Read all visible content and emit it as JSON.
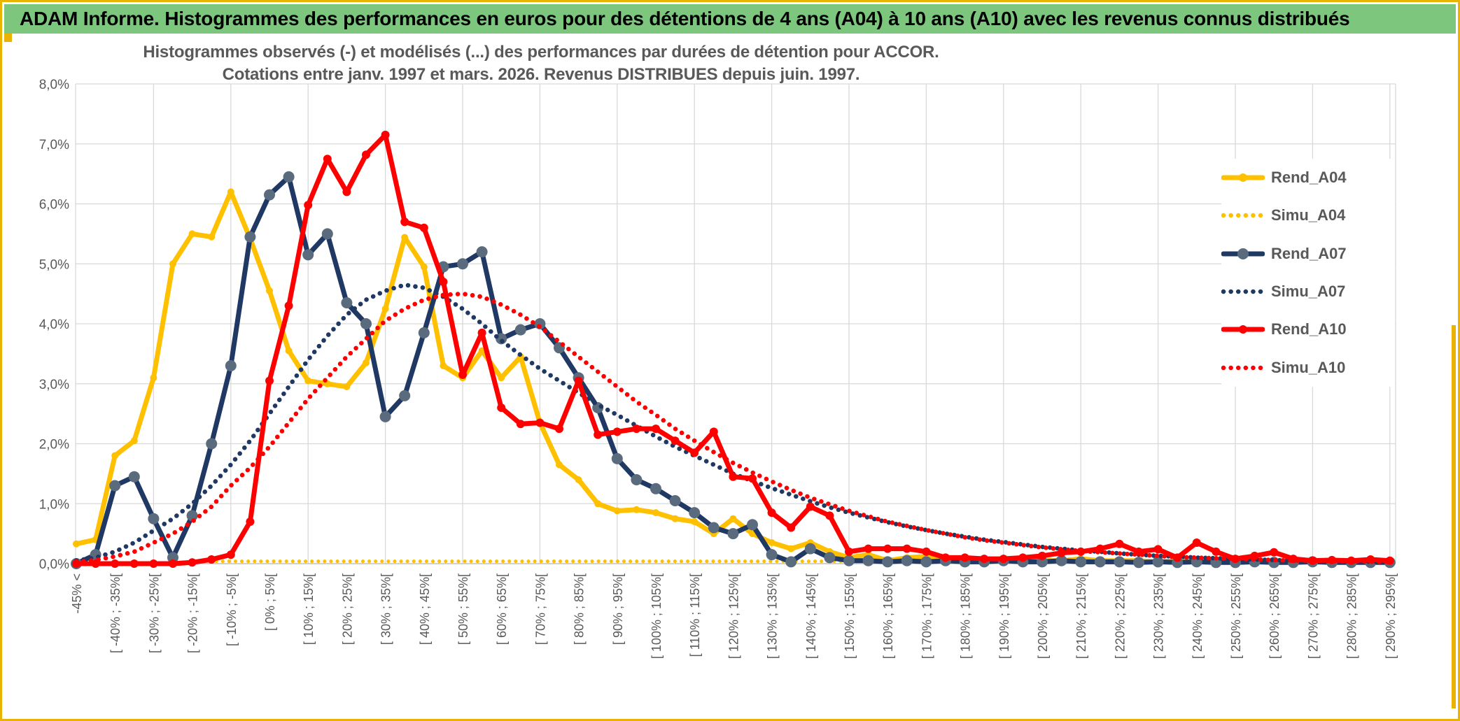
{
  "banner": {
    "title": "ADAM Informe. Histogrammes des performances en euros pour des détentions de 4 ans (A04) à 10 ans (A10) avec les revenus connus distribués"
  },
  "chart": {
    "title_line1": "Histogrammes observés (-) et modélisés (...) des performances par durées de détention pour ACCOR.",
    "title_line2": "Cotations entre janv. 1997 et mars. 2026. Revenus DISTRIBUES depuis juin. 1997."
  },
  "colors": {
    "banner_green": "#7CC77D",
    "border_gold": "#E9B300",
    "gold": "#FFC000",
    "navy": "#1F3864",
    "navy_marker_gray": "#5A6B7E",
    "red": "#FF0000",
    "axis_text_gray": "#595959",
    "gridline_gray": "#D9D9D9",
    "axis_line_gray": "#BFBFBF"
  },
  "legend": {
    "items": [
      {
        "label": "Rend_A04",
        "color": "#FFC000",
        "style": "solid",
        "marker": "#FFC000"
      },
      {
        "label": "Simu_A04",
        "color": "#FFC000",
        "style": "dotted",
        "marker": ""
      },
      {
        "label": "Rend_A07",
        "color": "#1F3864",
        "style": "solid",
        "marker": "#5A6B7E"
      },
      {
        "label": "Simu_A07",
        "color": "#1F3864",
        "style": "dotted",
        "marker": ""
      },
      {
        "label": "Rend_A10",
        "color": "#FF0000",
        "style": "solid",
        "marker": "#FF0000"
      },
      {
        "label": "Simu_A10",
        "color": "#FF0000",
        "style": "dotted",
        "marker": ""
      }
    ]
  },
  "chart_data": {
    "type": "line",
    "title": "Histogrammes observés (-) et modélisés (...) des performances par durées de détention pour ACCOR. Cotations entre janv. 1997 et mars. 2026. Revenus DISTRIBUES depuis juin. 1997.",
    "xlabel": "",
    "ylabel": "",
    "ylim": [
      0,
      8
    ],
    "grid": true,
    "legend_position": "right-overlay",
    "ytick_labels": [
      "0,0%",
      "1,0%",
      "2,0%",
      "3,0%",
      "4,0%",
      "5,0%",
      "6,0%",
      "7,0%",
      "8,0%"
    ],
    "x_label_interval": 2,
    "categories": [
      "-45% <",
      "",
      "[ -40% ; -35%[",
      "",
      "[ -30% ; -25%[",
      "",
      "[ -20% ; -15%[",
      "",
      "[ -10% ; -5%[",
      "",
      "[ 0% ; 5%[",
      "",
      "[ 10% ; 15%[",
      "",
      "[ 20% ; 25%[",
      "",
      "[ 30% ; 35%[",
      "",
      "[ 40% ; 45%[",
      "",
      "[ 50% ; 55%[",
      "",
      "[ 60% ; 65%[",
      "",
      "[ 70% ; 75%[",
      "",
      "[ 80% ; 85%[",
      "",
      "[ 90% ; 95%[",
      "",
      "[ 100% ; 105%[",
      "",
      "[ 110% ; 115%[",
      "",
      "[ 120% ; 125%[",
      "",
      "[ 130% ; 135%[",
      "",
      "[ 140% ; 145%[",
      "",
      "[ 150% ; 155%[",
      "",
      "[ 160% ; 165%[",
      "",
      "[ 170% ; 175%[",
      "",
      "[ 180% ; 185%[",
      "",
      "[ 190% ; 195%[",
      "",
      "[ 200% ; 205%[",
      "",
      "[ 210% ; 215%[",
      "",
      "[ 220% ; 225%[",
      "",
      "[ 230% ; 235%[",
      "",
      "[ 240% ; 245%[",
      "",
      "[ 250% ; 255%[",
      "",
      "[ 260% ; 265%[",
      "",
      "[ 270% ; 275%[",
      "",
      "[ 280% ; 285%[",
      "",
      "[ 290% ; 295%["
    ],
    "series": [
      {
        "name": "Rend_A04",
        "style": "solid",
        "color": "#FFC000",
        "marker_color": "#FFC000",
        "marker_r": 5,
        "values": [
          0.33,
          0.4,
          1.8,
          2.05,
          3.1,
          5.0,
          5.5,
          5.45,
          6.2,
          5.42,
          4.55,
          3.55,
          3.05,
          3.0,
          2.95,
          3.35,
          4.25,
          5.44,
          4.95,
          3.3,
          3.1,
          3.55,
          3.1,
          3.45,
          2.35,
          1.65,
          1.4,
          1.0,
          0.88,
          0.9,
          0.85,
          0.75,
          0.7,
          0.5,
          0.75,
          0.5,
          0.35,
          0.25,
          0.35,
          0.2,
          0.1,
          0.15,
          0.05,
          0.1,
          0.12,
          0.05,
          0.08,
          0.05,
          0.05,
          0.1,
          0.05,
          0.05,
          0.08,
          0.05,
          0.05,
          0.05,
          0.03,
          0.05,
          0.03,
          0.05,
          0.03,
          0.03,
          0.05,
          0.03,
          0.03,
          0.03,
          0.03,
          0.03,
          0.03
        ]
      },
      {
        "name": "Simu_A04",
        "style": "dotted",
        "color": "#FFC000",
        "values": [
          0,
          0,
          0,
          0,
          0,
          0,
          0.02,
          0.04,
          0.04,
          0.04,
          0.04,
          0.04,
          0.04,
          0.04,
          0.04,
          0.04,
          0.04,
          0.04,
          0.04,
          0.04,
          0.04,
          0.04,
          0.04,
          0.04,
          0.04,
          0.04,
          0.04,
          0.04,
          0.04,
          0.04,
          0.04,
          0.04,
          0.04,
          0.04,
          0.04,
          0.04,
          0.04,
          0.04,
          0.04,
          0.04,
          0.04,
          0.04,
          0.04,
          0.04,
          0.04,
          0.04,
          0.04,
          0.04,
          0.04,
          0.04,
          0.04,
          0.04,
          0.04,
          0.04,
          0.04,
          0.04,
          0.04,
          0.04,
          0.04,
          0.04,
          0.04,
          0.04,
          0.04,
          0.04,
          0.04,
          0.04,
          0.04,
          0.04,
          0.04
        ]
      },
      {
        "name": "Rend_A07",
        "style": "solid",
        "color": "#1F3864",
        "marker_color": "#5A6B7E",
        "marker_r": 8,
        "values": [
          0.0,
          0.15,
          1.3,
          1.45,
          0.75,
          0.1,
          0.8,
          2.0,
          3.3,
          5.45,
          6.15,
          6.45,
          5.15,
          5.5,
          4.35,
          4.0,
          2.45,
          2.8,
          3.85,
          4.95,
          5.0,
          5.2,
          3.75,
          3.9,
          4.0,
          3.6,
          3.1,
          2.6,
          1.75,
          1.4,
          1.25,
          1.05,
          0.85,
          0.6,
          0.5,
          0.65,
          0.15,
          0.03,
          0.25,
          0.1,
          0.05,
          0.05,
          0.03,
          0.05,
          0.03,
          0.05,
          0.03,
          0.03,
          0.05,
          0.03,
          0.03,
          0.05,
          0.03,
          0.03,
          0.03,
          0.02,
          0.03,
          0.02,
          0.03,
          0.02,
          0.02,
          0.03,
          0.02,
          0.02,
          0.03,
          0.02,
          0.02,
          0.02,
          0.02
        ]
      },
      {
        "name": "Simu_A07",
        "style": "dotted",
        "color": "#1F3864",
        "values": [
          0.05,
          0.1,
          0.2,
          0.35,
          0.55,
          0.75,
          1.0,
          1.3,
          1.65,
          2.05,
          2.5,
          2.95,
          3.4,
          3.8,
          4.15,
          4.4,
          4.55,
          4.65,
          4.6,
          4.45,
          4.25,
          4.0,
          3.72,
          3.48,
          3.25,
          3.05,
          2.85,
          2.65,
          2.48,
          2.3,
          2.12,
          1.95,
          1.8,
          1.65,
          1.5,
          1.38,
          1.26,
          1.15,
          1.04,
          0.94,
          0.85,
          0.77,
          0.69,
          0.62,
          0.56,
          0.5,
          0.45,
          0.4,
          0.36,
          0.32,
          0.28,
          0.25,
          0.22,
          0.2,
          0.17,
          0.15,
          0.13,
          0.12,
          0.1,
          0.09,
          0.08,
          0.07,
          0.06,
          0.05,
          0.05,
          0.04,
          0.04,
          0.03,
          0.03
        ]
      },
      {
        "name": "Rend_A10",
        "style": "solid",
        "color": "#FF0000",
        "marker_color": "#FF0000",
        "marker_r": 6,
        "values": [
          0,
          0,
          0,
          0,
          0,
          0,
          0.02,
          0.07,
          0.15,
          0.7,
          3.05,
          4.3,
          5.98,
          6.75,
          6.2,
          6.82,
          7.15,
          5.7,
          5.6,
          4.7,
          3.15,
          3.85,
          2.6,
          2.33,
          2.35,
          2.25,
          3.05,
          2.15,
          2.2,
          2.25,
          2.25,
          2.05,
          1.85,
          2.2,
          1.45,
          1.42,
          0.85,
          0.6,
          0.95,
          0.8,
          0.2,
          0.25,
          0.25,
          0.25,
          0.2,
          0.1,
          0.1,
          0.08,
          0.08,
          0.1,
          0.13,
          0.18,
          0.2,
          0.25,
          0.33,
          0.2,
          0.24,
          0.1,
          0.35,
          0.2,
          0.08,
          0.13,
          0.19,
          0.08,
          0.05,
          0.06,
          0.05,
          0.07,
          0.05
        ]
      },
      {
        "name": "Simu_A10",
        "style": "dotted",
        "color": "#FF0000",
        "values": [
          0.03,
          0.06,
          0.12,
          0.2,
          0.35,
          0.5,
          0.7,
          0.95,
          1.3,
          1.6,
          1.95,
          2.35,
          2.75,
          3.1,
          3.45,
          3.75,
          4.05,
          4.25,
          4.4,
          4.48,
          4.5,
          4.45,
          4.32,
          4.15,
          3.95,
          3.7,
          3.45,
          3.2,
          2.95,
          2.7,
          2.48,
          2.25,
          2.05,
          1.86,
          1.68,
          1.52,
          1.37,
          1.23,
          1.1,
          0.99,
          0.88,
          0.79,
          0.7,
          0.63,
          0.56,
          0.5,
          0.44,
          0.39,
          0.35,
          0.31,
          0.27,
          0.24,
          0.21,
          0.19,
          0.17,
          0.15,
          0.13,
          0.11,
          0.1,
          0.09,
          0.08,
          0.07,
          0.06,
          0.05,
          0.05,
          0.04,
          0.04,
          0.03,
          0.03
        ]
      }
    ]
  }
}
